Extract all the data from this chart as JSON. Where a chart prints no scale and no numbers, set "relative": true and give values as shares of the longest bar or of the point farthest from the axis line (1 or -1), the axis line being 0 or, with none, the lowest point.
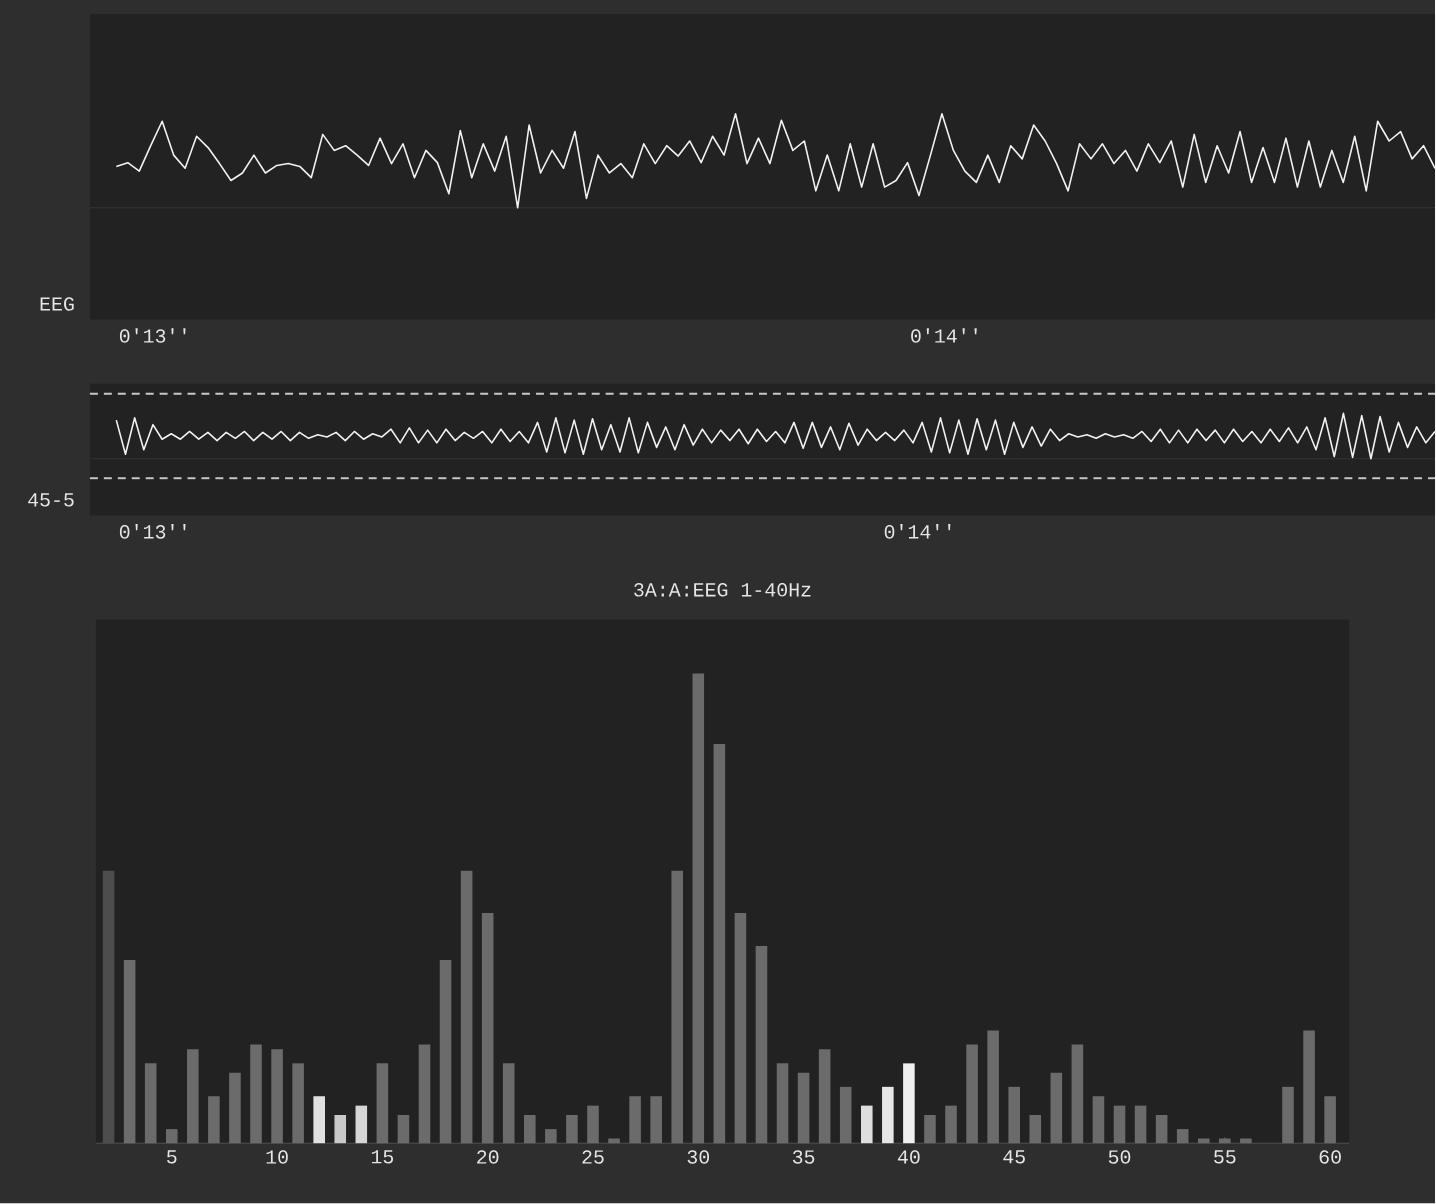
{
  "chart_data": [
    {
      "type": "line",
      "ylabel": "EEG",
      "relative": true,
      "color": "#f2f2f2",
      "annotations": [
        "0'13''",
        "0'14''"
      ],
      "categories": [
        null,
        null,
        null,
        null,
        null,
        null,
        null,
        null,
        null,
        null,
        null,
        null,
        null,
        null,
        null,
        null,
        null,
        null,
        null,
        null,
        null,
        null,
        null,
        null,
        null,
        null,
        null,
        null,
        null,
        null,
        null,
        null,
        null,
        null,
        null,
        null,
        null,
        null,
        null,
        null,
        null,
        null,
        null,
        null,
        null,
        null,
        null,
        null,
        null,
        null,
        null,
        null,
        null,
        null,
        null,
        null,
        null,
        null,
        null,
        null,
        null,
        null,
        null,
        null,
        null,
        null,
        null,
        null,
        null,
        null,
        null,
        null,
        null,
        null,
        null,
        null,
        null,
        null,
        null,
        null,
        null,
        null,
        null,
        null,
        null,
        null,
        null,
        null,
        null,
        null,
        null,
        null,
        null,
        null,
        null,
        null,
        null,
        null,
        null,
        null,
        null,
        null,
        null,
        null,
        null,
        null,
        null,
        null,
        null,
        null,
        null,
        null,
        null,
        null,
        null,
        null
      ],
      "values": [
        0.44,
        0.48,
        0.39,
        0.66,
        0.92,
        0.56,
        0.42,
        0.76,
        0.64,
        0.47,
        0.29,
        0.37,
        0.56,
        0.37,
        0.45,
        0.47,
        0.44,
        0.32,
        0.78,
        0.61,
        0.66,
        0.56,
        0.45,
        0.74,
        0.47,
        0.68,
        0.32,
        0.61,
        0.48,
        0.15,
        0.82,
        0.32,
        0.68,
        0.39,
        0.76,
        0,
        0.88,
        0.37,
        0.61,
        0.42,
        0.81,
        0.1,
        0.56,
        0.37,
        0.47,
        0.32,
        0.68,
        0.47,
        0.66,
        0.55,
        0.71,
        0.48,
        0.76,
        0.56,
        1,
        0.47,
        0.74,
        0.47,
        0.93,
        0.61,
        0.71,
        0.18,
        0.56,
        0.18,
        0.68,
        0.22,
        0.68,
        0.22,
        0.29,
        0.48,
        0.13,
        0.56,
        1,
        0.61,
        0.39,
        0.27,
        0.56,
        0.27,
        0.66,
        0.52,
        0.88,
        0.71,
        0.47,
        0.18,
        0.68,
        0.52,
        0.68,
        0.47,
        0.61,
        0.39,
        0.68,
        0.48,
        0.71,
        0.22,
        0.78,
        0.27,
        0.66,
        0.37,
        0.81,
        0.27,
        0.64,
        0.27,
        0.74,
        0.22,
        0.71,
        0.22,
        0.61,
        0.27,
        0.76,
        0.18,
        0.92,
        0.71,
        0.81,
        0.52,
        0.66,
        0.42
      ]
    },
    {
      "type": "line",
      "ylabel": "45-5",
      "relative": true,
      "color": "#f2f2f2",
      "annotations": [
        "0'13''",
        "0'14''"
      ],
      "ref_lines": [
        {
          "axis": "y",
          "value": 1.43,
          "line_style": "dashed",
          "color": "#c8c8c8"
        },
        {
          "axis": "y",
          "value": -0.43,
          "line_style": "dashed",
          "color": "#c8c8c8"
        }
      ],
      "categories": [
        null,
        null,
        null,
        null,
        null,
        null,
        null,
        null,
        null,
        null,
        null,
        null,
        null,
        null,
        null,
        null,
        null,
        null,
        null,
        null,
        null,
        null,
        null,
        null,
        null,
        null,
        null,
        null,
        null,
        null,
        null,
        null,
        null,
        null,
        null,
        null,
        null,
        null,
        null,
        null,
        null,
        null,
        null,
        null,
        null,
        null,
        null,
        null,
        null,
        null,
        null,
        null,
        null,
        null,
        null,
        null,
        null,
        null,
        null,
        null,
        null,
        null,
        null,
        null,
        null,
        null,
        null,
        null,
        null,
        null,
        null,
        null,
        null,
        null,
        null,
        null,
        null,
        null,
        null,
        null,
        null,
        null,
        null,
        null,
        null,
        null,
        null,
        null,
        null,
        null,
        null,
        null,
        null,
        null,
        null,
        null,
        null,
        null,
        null,
        null,
        null,
        null,
        null,
        null,
        null,
        null,
        null,
        null,
        null,
        null,
        null,
        null,
        null,
        null,
        null,
        null,
        null,
        null,
        null,
        null,
        null,
        null,
        null,
        null,
        null,
        null,
        null,
        null,
        null,
        null,
        null,
        null,
        null,
        null,
        null,
        null,
        null,
        null,
        null,
        null,
        null,
        null,
        null,
        null,
        null
      ],
      "values": [
        0.85,
        0.1,
        0.9,
        0.2,
        0.75,
        0.43,
        0.55,
        0.43,
        0.6,
        0.43,
        0.58,
        0.4,
        0.58,
        0.45,
        0.6,
        0.4,
        0.58,
        0.43,
        0.6,
        0.4,
        0.58,
        0.45,
        0.53,
        0.48,
        0.58,
        0.4,
        0.6,
        0.43,
        0.55,
        0.48,
        0.65,
        0.35,
        0.68,
        0.35,
        0.63,
        0.35,
        0.65,
        0.4,
        0.58,
        0.45,
        0.6,
        0.35,
        0.65,
        0.38,
        0.6,
        0.35,
        0.8,
        0.15,
        0.9,
        0.13,
        0.85,
        0.1,
        0.88,
        0.2,
        0.75,
        0.15,
        0.9,
        0.13,
        0.8,
        0.25,
        0.7,
        0.2,
        0.75,
        0.3,
        0.65,
        0.35,
        0.63,
        0.4,
        0.65,
        0.33,
        0.65,
        0.38,
        0.6,
        0.35,
        0.8,
        0.23,
        0.8,
        0.25,
        0.7,
        0.2,
        0.78,
        0.3,
        0.65,
        0.4,
        0.58,
        0.4,
        0.63,
        0.35,
        0.8,
        0.15,
        0.9,
        0.13,
        0.85,
        0.1,
        0.88,
        0.2,
        0.85,
        0.1,
        0.8,
        0.25,
        0.7,
        0.28,
        0.65,
        0.4,
        0.55,
        0.48,
        0.53,
        0.45,
        0.55,
        0.48,
        0.53,
        0.45,
        0.6,
        0.38,
        0.65,
        0.35,
        0.63,
        0.35,
        0.65,
        0.4,
        0.63,
        0.35,
        0.65,
        0.38,
        0.6,
        0.35,
        0.65,
        0.38,
        0.68,
        0.35,
        0.7,
        0.2,
        0.9,
        0.05,
        1,
        0.03,
        0.95,
        0,
        0.93,
        0.15,
        0.8,
        0.25,
        0.7,
        0.35,
        0.6
      ]
    },
    {
      "type": "bar",
      "title": "3A:A:EEG 1-40Hz",
      "relative": true,
      "xlim": [
        1.4,
        60.9
      ],
      "xticks": [
        5,
        10,
        15,
        20,
        25,
        30,
        35,
        40,
        45,
        50,
        55,
        60
      ],
      "x": [
        2,
        3,
        4,
        5,
        6,
        7,
        8,
        9,
        10,
        11,
        12,
        13,
        14,
        15,
        16,
        17,
        18,
        19,
        20,
        21,
        22,
        23,
        24,
        25,
        26,
        27,
        28,
        29,
        30,
        31,
        32,
        33,
        34,
        35,
        36,
        37,
        38,
        39,
        40,
        41,
        42,
        43,
        44,
        45,
        46,
        47,
        48,
        49,
        50,
        51,
        52,
        53,
        54,
        55,
        56,
        57,
        58,
        59,
        60
      ],
      "values": [
        0.58,
        0.39,
        0.17,
        0.03,
        0.2,
        0.1,
        0.15,
        0.21,
        0.2,
        0.17,
        0.1,
        0.06,
        0.08,
        0.17,
        0.06,
        0.21,
        0.39,
        0.58,
        0.49,
        0.17,
        0.06,
        0.03,
        0.06,
        0.08,
        0.01,
        0.1,
        0.1,
        0.58,
        1,
        0.85,
        0.49,
        0.42,
        0.17,
        0.15,
        0.2,
        0.12,
        0.08,
        0.12,
        0.17,
        0.06,
        0.08,
        0.21,
        0.24,
        0.12,
        0.06,
        0.15,
        0.21,
        0.1,
        0.08,
        0.08,
        0.06,
        0.03,
        0.01,
        0.01,
        0.01,
        0,
        0.12,
        0.24,
        0.1
      ],
      "colors": [
        "#4d4d4d",
        "#6b6b6b",
        "#6b6b6b",
        "#6b6b6b",
        "#6b6b6b",
        "#6b6b6b",
        "#6b6b6b",
        "#6b6b6b",
        "#6b6b6b",
        "#6b6b6b",
        "#e0e0e0",
        "#c9c9c9",
        "#d6d6d6",
        "#6b6b6b",
        "#6b6b6b",
        "#6b6b6b",
        "#6b6b6b",
        "#6b6b6b",
        "#6b6b6b",
        "#6b6b6b",
        "#6b6b6b",
        "#6b6b6b",
        "#6b6b6b",
        "#6b6b6b",
        "#6b6b6b",
        "#6b6b6b",
        "#6b6b6b",
        "#6b6b6b",
        "#6b6b6b",
        "#6b6b6b",
        "#6b6b6b",
        "#6b6b6b",
        "#6b6b6b",
        "#6b6b6b",
        "#6b6b6b",
        "#6b6b6b",
        "#dedede",
        "#e6e6e6",
        "#f0f0f0",
        "#6b6b6b",
        "#6b6b6b",
        "#6b6b6b",
        "#6b6b6b",
        "#6b6b6b",
        "#6b6b6b",
        "#6b6b6b",
        "#6b6b6b",
        "#6b6b6b",
        "#6b6b6b",
        "#6b6b6b",
        "#6b6b6b",
        "#6b6b6b",
        "#6b6b6b",
        "#6b6b6b",
        "#6b6b6b",
        "#6b6b6b",
        "#6b6b6b",
        "#6b6b6b",
        "#6b6b6b"
      ]
    }
  ]
}
